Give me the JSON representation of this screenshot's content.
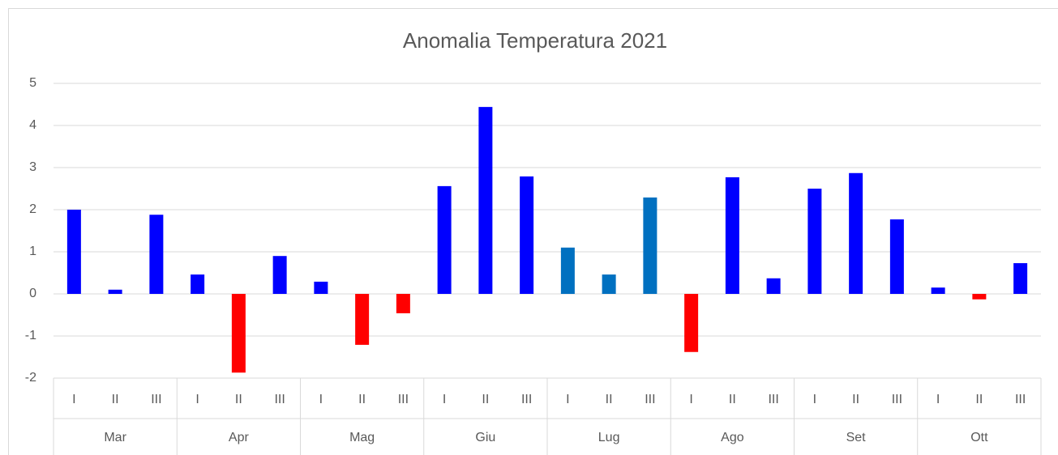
{
  "chart_data": {
    "type": "bar",
    "title": "Anomalia Temperatura 2021",
    "categories": [
      "I",
      "II",
      "III",
      "I",
      "II",
      "III",
      "I",
      "II",
      "III",
      "I",
      "II",
      "III",
      "I",
      "II",
      "III",
      "I",
      "II",
      "III",
      "I",
      "II",
      "III",
      "I",
      "II",
      "III"
    ],
    "groups": [
      "Mar",
      "Apr",
      "Mag",
      "Giu",
      "Lug",
      "Ago",
      "Set",
      "Ott"
    ],
    "values": [
      2.0,
      0.1,
      1.88,
      0.46,
      -1.87,
      0.9,
      0.29,
      -1.21,
      -0.46,
      2.56,
      4.44,
      2.79,
      1.1,
      0.46,
      2.29,
      -1.38,
      2.77,
      0.37,
      2.5,
      2.87,
      1.77,
      0.15,
      -0.13,
      0.73
    ],
    "colors": [
      "#0000ff",
      "#0000ff",
      "#0000ff",
      "#0000ff",
      "#ff0000",
      "#0000ff",
      "#0000ff",
      "#ff0000",
      "#ff0000",
      "#0000ff",
      "#0000ff",
      "#0000ff",
      "#0070c0",
      "#0070c0",
      "#0070c0",
      "#ff0000",
      "#0000ff",
      "#0000ff",
      "#0000ff",
      "#0000ff",
      "#0000ff",
      "#0000ff",
      "#ff0000",
      "#0000ff"
    ],
    "ylim": [
      -2,
      5
    ],
    "yticks": [
      -2,
      -1,
      0,
      1,
      2,
      3,
      4,
      5
    ],
    "grid": true
  }
}
